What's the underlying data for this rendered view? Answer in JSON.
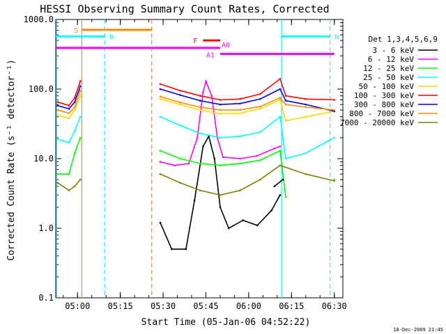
{
  "chart_data": {
    "type": "line",
    "title": "HESSI Observing Summary Count Rates, Corrected",
    "xlabel": "Start Time (05-Jan-06 04:52:22)",
    "ylabel": "Corrected Count Rate (s⁻¹ detector⁻¹)",
    "timestamp": "18-Dec-2009 21:45",
    "y_scale": "log",
    "ylim": [
      0.1,
      1000.0
    ],
    "xlim": [
      "04:52:22",
      "06:33:00"
    ],
    "y_ticks": [
      "1000.0",
      "100.0",
      "10.0",
      "1.0",
      "0.1"
    ],
    "x_ticks": [
      "05:00",
      "05:15",
      "05:30",
      "05:45",
      "06:00",
      "06:15",
      "06:30"
    ],
    "legend": {
      "title": "Det 1,3,4,5,6,9",
      "placement": "right",
      "entries": [
        {
          "label": "3 - 6 keV",
          "color": "#000000"
        },
        {
          "label": "6 - 12 keV",
          "color": "#ff00ff"
        },
        {
          "label": "12 - 25 keV",
          "color": "#00ff00"
        },
        {
          "label": "25 - 50 keV",
          "color": "#00ffff"
        },
        {
          "label": "50 - 100 keV",
          "color": "#ffd700"
        },
        {
          "label": "100 - 300 keV",
          "color": "#ff0000"
        },
        {
          "label": "300 - 800 keV",
          "color": "#0000ff"
        },
        {
          "label": "800 - 7000 keV",
          "color": "#ff8c00"
        },
        {
          "label": "7000 - 20000 keV",
          "color": "#808000"
        }
      ]
    },
    "series": [
      {
        "name": "3 - 6 keV",
        "color": "#000000",
        "points": [
          [
            "05:29",
            1.2
          ],
          [
            "05:33",
            0.5
          ],
          [
            "05:38",
            0.5
          ],
          [
            "05:41",
            2.5
          ],
          [
            "05:44",
            15.0
          ],
          [
            "05:46",
            21.0
          ],
          [
            "05:48",
            10.0
          ],
          [
            "05:50",
            2.0
          ],
          [
            "05:53",
            1.0
          ],
          [
            "05:58",
            1.3
          ],
          [
            "06:03",
            1.1
          ],
          [
            "06:08",
            1.8
          ],
          [
            "06:11",
            3.0
          ]
        ]
      },
      {
        "name": "6 - 12 keV",
        "color": "#ff00ff",
        "points": [
          [
            "05:29",
            9.0
          ],
          [
            "05:34",
            8.0
          ],
          [
            "05:39",
            8.5
          ],
          [
            "05:42",
            20.0
          ],
          [
            "05:44",
            90.0
          ],
          [
            "05:45",
            130.0
          ],
          [
            "05:47",
            80.0
          ],
          [
            "05:49",
            20.0
          ],
          [
            "05:51",
            10.5
          ],
          [
            "05:57",
            10.0
          ],
          [
            "06:03",
            11.0
          ],
          [
            "06:09",
            14.0
          ],
          [
            "06:11",
            15.0
          ]
        ]
      },
      {
        "name": "12 - 25 keV",
        "color": "#00ff00",
        "points": [
          [
            "04:53",
            6.0
          ],
          [
            "04:57",
            6.0
          ],
          [
            "04:59",
            12.0
          ],
          [
            "05:01",
            20.0
          ],
          [
            "05:29",
            13.0
          ],
          [
            "05:36",
            10.0
          ],
          [
            "05:43",
            8.5
          ],
          [
            "05:50",
            8.0
          ],
          [
            "05:57",
            8.5
          ],
          [
            "06:04",
            9.5
          ],
          [
            "06:11",
            13.0
          ],
          [
            "06:13",
            2.8
          ],
          [
            "06:30",
            5.0
          ]
        ]
      },
      {
        "name": "25 - 50 keV",
        "color": "#00ffff",
        "points": [
          [
            "04:53",
            19.0
          ],
          [
            "04:57",
            17.0
          ],
          [
            "04:59",
            25.0
          ],
          [
            "05:01",
            40.0
          ],
          [
            "05:29",
            40.0
          ],
          [
            "05:36",
            30.0
          ],
          [
            "05:43",
            23.0
          ],
          [
            "05:50",
            20.0
          ],
          [
            "05:57",
            21.0
          ],
          [
            "06:04",
            24.0
          ],
          [
            "06:11",
            40.0
          ],
          [
            "06:13",
            10.0
          ],
          [
            "06:20",
            12.0
          ],
          [
            "06:30",
            20.0
          ]
        ]
      },
      {
        "name": "50 - 100 keV",
        "color": "#ffd700",
        "points": [
          [
            "04:53",
            42.0
          ],
          [
            "04:57",
            38.0
          ],
          [
            "04:59",
            50.0
          ],
          [
            "05:01",
            80.0
          ],
          [
            "05:29",
            72.0
          ],
          [
            "05:36",
            60.0
          ],
          [
            "05:43",
            50.0
          ],
          [
            "05:50",
            44.0
          ],
          [
            "05:57",
            45.0
          ],
          [
            "06:04",
            52.0
          ],
          [
            "06:11",
            70.0
          ],
          [
            "06:13",
            35.0
          ],
          [
            "06:20",
            40.0
          ],
          [
            "06:30",
            48.0
          ]
        ]
      },
      {
        "name": "100 - 300 keV",
        "color": "#ff0000",
        "points": [
          [
            "04:53",
            65.0
          ],
          [
            "04:57",
            58.0
          ],
          [
            "04:59",
            75.0
          ],
          [
            "05:01",
            130.0
          ],
          [
            "05:29",
            118.0
          ],
          [
            "05:36",
            95.0
          ],
          [
            "05:43",
            80.0
          ],
          [
            "05:50",
            70.0
          ],
          [
            "05:57",
            72.0
          ],
          [
            "06:04",
            85.0
          ],
          [
            "06:11",
            140.0
          ],
          [
            "06:13",
            80.0
          ],
          [
            "06:20",
            72.0
          ],
          [
            "06:30",
            70.0
          ]
        ]
      },
      {
        "name": "300 - 800 keV",
        "color": "#0000ff",
        "points": [
          [
            "04:53",
            58.0
          ],
          [
            "04:57",
            52.0
          ],
          [
            "04:59",
            65.0
          ],
          [
            "05:01",
            110.0
          ],
          [
            "05:29",
            100.0
          ],
          [
            "05:36",
            82.0
          ],
          [
            "05:43",
            68.0
          ],
          [
            "05:50",
            60.0
          ],
          [
            "05:57",
            62.0
          ],
          [
            "06:04",
            72.0
          ],
          [
            "06:11",
            100.0
          ],
          [
            "06:13",
            68.0
          ],
          [
            "06:20",
            60.0
          ],
          [
            "06:30",
            48.0
          ]
        ]
      },
      {
        "name": "800 - 7000 keV",
        "color": "#ff8c00",
        "points": [
          [
            "04:53",
            50.0
          ],
          [
            "04:57",
            45.0
          ],
          [
            "04:59",
            55.0
          ],
          [
            "05:01",
            95.0
          ],
          [
            "05:29",
            78.0
          ],
          [
            "05:36",
            64.0
          ],
          [
            "05:43",
            55.0
          ],
          [
            "05:50",
            50.0
          ],
          [
            "05:57",
            50.0
          ],
          [
            "06:04",
            56.0
          ],
          [
            "06:11",
            75.0
          ],
          [
            "06:13",
            60.0
          ],
          [
            "06:20",
            55.0
          ],
          [
            "06:30",
            50.0
          ]
        ]
      },
      {
        "name": "7000 - 20000 keV",
        "color": "#808000",
        "points": [
          [
            "04:53",
            4.5
          ],
          [
            "04:57",
            3.5
          ],
          [
            "04:59",
            4.0
          ],
          [
            "05:01",
            5.0
          ],
          [
            "05:29",
            6.0
          ],
          [
            "05:36",
            4.5
          ],
          [
            "05:43",
            3.5
          ],
          [
            "05:50",
            3.0
          ],
          [
            "05:57",
            3.5
          ],
          [
            "06:04",
            5.0
          ],
          [
            "06:11",
            8.0
          ],
          [
            "06:20",
            6.0
          ],
          [
            "06:30",
            4.8
          ]
        ]
      }
    ],
    "attenuator_series": {
      "name": "3 - 6 keV attenuated",
      "color": "#000000",
      "points": [
        [
          "06:09",
          4.0
        ],
        [
          "06:12",
          5.0
        ]
      ]
    },
    "vertical_markers": [
      {
        "time": "04:52:40",
        "color": "#00ffff",
        "style": "solid"
      },
      {
        "time": "05:01:30",
        "color": "#ff8c00",
        "style": "solid"
      },
      {
        "time": "05:09:30",
        "color": "#00ffff",
        "style": "dashed"
      },
      {
        "time": "05:26:00",
        "color": "#ff8c00",
        "style": "dashed"
      },
      {
        "time": "06:11:30",
        "color": "#00ffff",
        "style": "solid"
      },
      {
        "time": "06:28:30",
        "color": "#00ffff",
        "style": "dashed"
      }
    ],
    "flag_bars": [
      {
        "label": "S",
        "color": "#ff8c00",
        "start": "05:01:30",
        "end": "05:26:00",
        "level": 710
      },
      {
        "label": "N",
        "color": "#00ffff",
        "start": "04:52:22",
        "end": "05:09:30",
        "level": 570
      },
      {
        "label": "N",
        "color": "#00ffff",
        "start": "06:11:30",
        "end": "06:28:30",
        "level": 570
      },
      {
        "label": "F",
        "color": "#ff0000",
        "start": "05:44:00",
        "end": "05:50:00",
        "level": 500
      },
      {
        "label": "A0",
        "color": "#ff00ff",
        "start": "04:52:22",
        "end": "05:50:00",
        "level": 390
      },
      {
        "label": "A1",
        "color": "#ff00ff",
        "start": "05:50:00",
        "end": "06:30:00",
        "level": 320
      }
    ]
  }
}
